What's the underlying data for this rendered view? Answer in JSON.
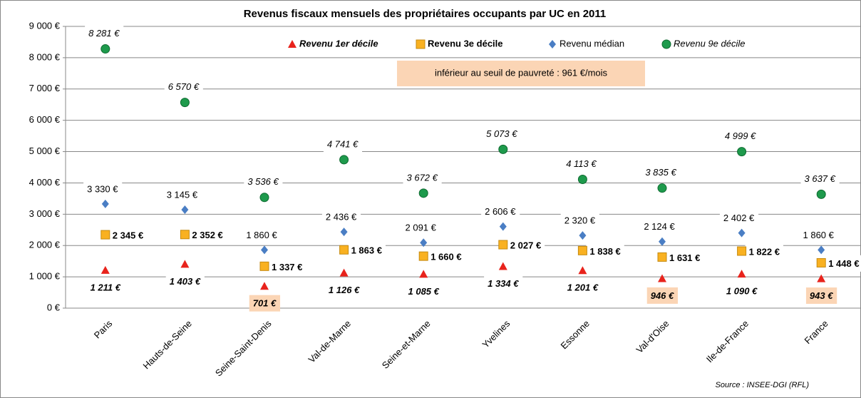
{
  "chart_data": {
    "type": "scatter",
    "title": "Revenus fiscaux mensuels des propriétaires occupants par UC en 2011",
    "annotation": "inférieur au seuil de pauvreté : 961 €/mois",
    "threshold": 961,
    "source": "Source : INSEE-DGI (RFL)",
    "categories": [
      "Paris",
      "Hauts-de-Seine",
      "Seine-Saint-Denis",
      "Val-de-Marne",
      "Seine-et-Marne",
      "Yvelines",
      "Essonne",
      "Val-d'Oise",
      "Ile-de-France",
      "France"
    ],
    "series": [
      {
        "name": "Revenu 1er décile",
        "color": "#e8231c",
        "marker": "triangle",
        "values": [
          1211,
          1403,
          701,
          1126,
          1085,
          1334,
          1201,
          946,
          1090,
          943
        ],
        "value_labels": [
          "1 211 €",
          "1 403 €",
          "701 €",
          "1 126 €",
          "1 085 €",
          "1 334 €",
          "1 201 €",
          "946 €",
          "1 090 €",
          "943 €"
        ]
      },
      {
        "name": "Revenu 3e décile",
        "color": "#f9b121",
        "marker": "square",
        "values": [
          2345,
          2352,
          1337,
          1863,
          1660,
          2027,
          1838,
          1631,
          1822,
          1448
        ],
        "value_labels": [
          "2 345 €",
          "2 352 €",
          "1 337 €",
          "1 863 €",
          "1 660 €",
          "2 027 €",
          "1 838 €",
          "1 631 €",
          "1 822 €",
          "1 448 €"
        ]
      },
      {
        "name": "Revenu médian",
        "color": "#4a7ec4",
        "marker": "diamond",
        "values": [
          3330,
          3145,
          1860,
          2436,
          2091,
          2606,
          2320,
          2124,
          2402,
          1860
        ],
        "value_labels": [
          "3 330 €",
          "3 145 €",
          "1 860 €",
          "2 436 €",
          "2 091 €",
          "2 606 €",
          "2 320 €",
          "2 124 €",
          "2 402 €",
          "1 860 €"
        ]
      },
      {
        "name": "Revenu 9e décile",
        "color": "#1e9a4c",
        "marker": "circle",
        "values": [
          8281,
          6570,
          3536,
          4741,
          3672,
          5073,
          4113,
          3835,
          4999,
          3637
        ],
        "value_labels": [
          "8 281 €",
          "6 570 €",
          "3 536 €",
          "4 741 €",
          "3 672 €",
          "5 073 €",
          "4 113 €",
          "3 835 €",
          "4 999 €",
          "3 637 €"
        ]
      }
    ],
    "ylim": [
      0,
      9000
    ],
    "yticks": [
      {
        "value": 0,
        "label": "0 €"
      },
      {
        "value": 1000,
        "label": "1 000 €"
      },
      {
        "value": 2000,
        "label": "2 000 €"
      },
      {
        "value": 3000,
        "label": "3 000 €"
      },
      {
        "value": 4000,
        "label": "4 000 €"
      },
      {
        "value": 5000,
        "label": "5 000 €"
      },
      {
        "value": 6000,
        "label": "6 000 €"
      },
      {
        "value": 7000,
        "label": "7 000 €"
      },
      {
        "value": 8000,
        "label": "8 000 €"
      },
      {
        "value": 9000,
        "label": "9 000 €"
      }
    ],
    "grid": true
  }
}
